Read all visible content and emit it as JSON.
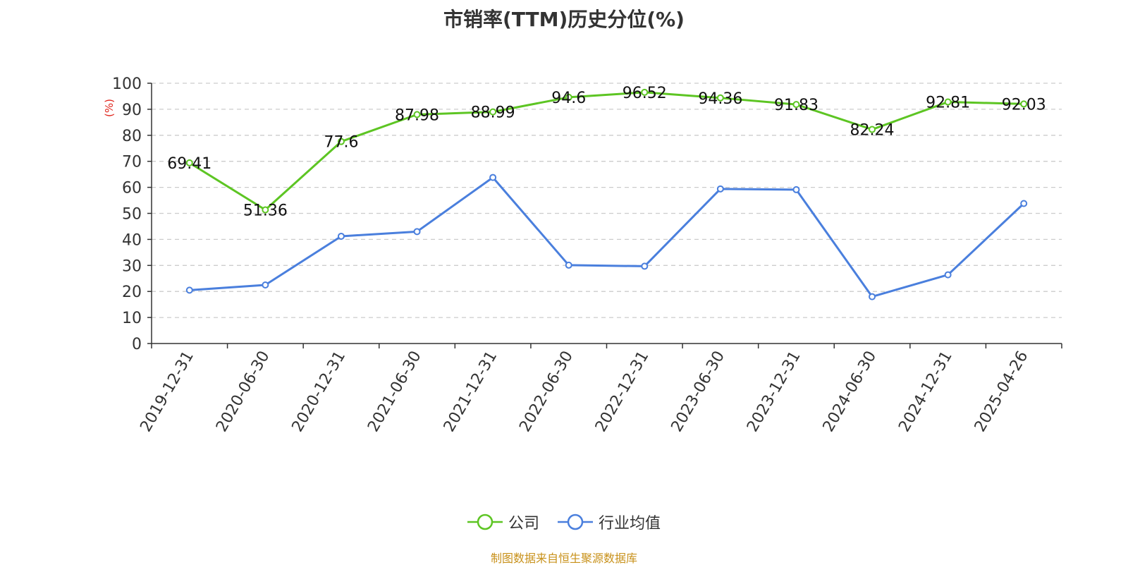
{
  "chart_data": {
    "type": "line",
    "title": "市销率(TTM)历史分位(%)",
    "ylabel": "(%)",
    "xlabel": "",
    "ylim": [
      0,
      100
    ],
    "yticks": [
      0,
      10,
      20,
      30,
      40,
      50,
      60,
      70,
      80,
      90,
      100
    ],
    "grid": true,
    "legend_position": "bottom",
    "categories": [
      "2019-12-31",
      "2020-06-30",
      "2020-12-31",
      "2021-06-30",
      "2021-12-31",
      "2022-06-30",
      "2022-12-31",
      "2023-06-30",
      "2023-12-31",
      "2024-06-30",
      "2024-12-31",
      "2025-04-26"
    ],
    "series": [
      {
        "name": "公司",
        "color": "#5dc523",
        "values": [
          69.41,
          51.36,
          77.6,
          87.98,
          88.99,
          94.6,
          96.52,
          94.36,
          91.83,
          82.24,
          92.81,
          92.03
        ],
        "labels": [
          "69.41",
          "51.36",
          "77.6",
          "87.98",
          "88.99",
          "94.6",
          "96.52",
          "94.36",
          "91.83",
          "82.24",
          "92.81",
          "92.03"
        ]
      },
      {
        "name": "行业均值",
        "color": "#4a7fdd",
        "values": [
          20.5,
          22.5,
          41.2,
          43.0,
          63.8,
          30.1,
          29.7,
          59.4,
          59.1,
          18.0,
          26.4,
          53.8
        ]
      }
    ]
  },
  "source_note": "制图数据来自恒生聚源数据库"
}
